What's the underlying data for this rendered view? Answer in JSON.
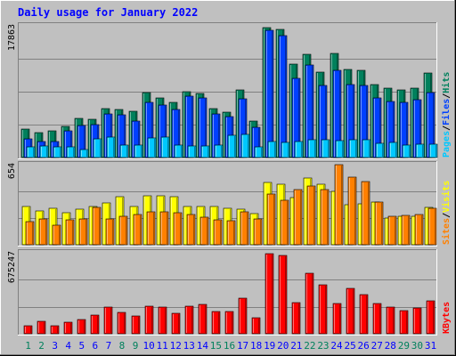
{
  "chart_data": {
    "type": "bar",
    "title": "Daily usage for January 2022",
    "colors": {
      "background": "#C0C0C0",
      "title": "#0000FF",
      "hits": "#00805C",
      "files": "#0040FF",
      "pages": "#00C8FF",
      "visits": "#FFFF00",
      "sites": "#FF8000",
      "kbytes": "#FF0000",
      "weekend_label": "#00805C",
      "weekday_label": "#0000FF"
    },
    "categories": [
      "1",
      "2",
      "3",
      "4",
      "5",
      "6",
      "7",
      "8",
      "9",
      "10",
      "11",
      "12",
      "13",
      "14",
      "15",
      "16",
      "17",
      "18",
      "19",
      "20",
      "21",
      "22",
      "23",
      "24",
      "25",
      "26",
      "27",
      "28",
      "29",
      "30",
      "31"
    ],
    "weekend": [
      1,
      2,
      8,
      9,
      15,
      16,
      22,
      23,
      29,
      30
    ],
    "panels": [
      {
        "id": "hits-files-pages",
        "scale_label": "17863",
        "ymax": 17863,
        "legend": [
          {
            "text": "Pages",
            "color": "#00C8FF"
          },
          {
            "text": "/",
            "color": "#000000"
          },
          {
            "text": "Files",
            "color": "#0040FF"
          },
          {
            "text": "/",
            "color": "#000000"
          },
          {
            "text": "Hits",
            "color": "#00805C"
          }
        ],
        "series": [
          {
            "name": "Hits",
            "color": "#00805C",
            "values": [
              3890,
              3410,
              3590,
              4210,
              5260,
              5210,
              6650,
              6530,
              6270,
              8830,
              8040,
              7490,
              8900,
              8730,
              6630,
              6160,
              9220,
              4910,
              17630,
              17330,
              12690,
              13960,
              11560,
              14070,
              11990,
              11820,
              9950,
              9360,
              9190,
              9440,
              11520
            ]
          },
          {
            "name": "Files",
            "color": "#0040FF",
            "values": [
              2580,
              2230,
              2180,
              3620,
              4330,
              4500,
              5870,
              5810,
              4930,
              7520,
              7170,
              6470,
              8280,
              8110,
              5940,
              5550,
              7960,
              4150,
              17280,
              16560,
              10700,
              12510,
              9760,
              11780,
              9880,
              9720,
              8070,
              7640,
              7440,
              7830,
              8860
            ]
          },
          {
            "name": "Pages",
            "color": "#00C8FF",
            "values": [
              1480,
              1540,
              1420,
              1450,
              1040,
              2510,
              2790,
              1660,
              1630,
              2600,
              2790,
              1720,
              1560,
              1540,
              1670,
              2970,
              3130,
              1480,
              2220,
              2030,
              2220,
              2460,
              2400,
              2340,
              2370,
              2460,
              1980,
              2040,
              1750,
              1850,
              1830
            ]
          }
        ]
      },
      {
        "id": "visits-sites",
        "scale_label": "654",
        "ymax": 654,
        "legend": [
          {
            "text": "Sites",
            "color": "#FF8000"
          },
          {
            "text": "/",
            "color": "#000000"
          },
          {
            "text": "Visits",
            "color": "#FFFF00"
          }
        ],
        "series": [
          {
            "name": "Visits",
            "color": "#FFFF00",
            "values": [
              309,
              273,
              295,
              262,
              290,
              309,
              344,
              389,
              316,
              403,
              403,
              389,
              316,
              309,
              316,
              295,
              288,
              255,
              506,
              491,
              388,
              545,
              491,
              433,
              325,
              332,
              352,
              215,
              229,
              229,
              302
            ]
          },
          {
            "name": "Sites",
            "color": "#FF8000",
            "values": [
              190,
              210,
              159,
              201,
              213,
              303,
              213,
              235,
              246,
              268,
              268,
              259,
              250,
              225,
              201,
              199,
              266,
              213,
              411,
              362,
              452,
              483,
              447,
              653,
              552,
              513,
              352,
              230,
              238,
              244,
              295
            ]
          }
        ]
      },
      {
        "id": "kbytes",
        "scale_label": "675247",
        "ymax": 675247,
        "legend": [
          {
            "text": "KBytes",
            "color": "#FF0000"
          }
        ],
        "series": [
          {
            "name": "KBytes",
            "color": "#FF0000",
            "values": [
              68000,
              105000,
              70000,
              93000,
              116000,
              155000,
              220000,
              178000,
              150000,
              231000,
              222000,
              172000,
              232000,
              245000,
              187000,
              186000,
              294000,
              134000,
              669000,
              654000,
              260000,
              507000,
              405000,
              249000,
              378000,
              329000,
              250000,
              225000,
              193000,
              216000,
              274000
            ]
          }
        ]
      }
    ]
  }
}
